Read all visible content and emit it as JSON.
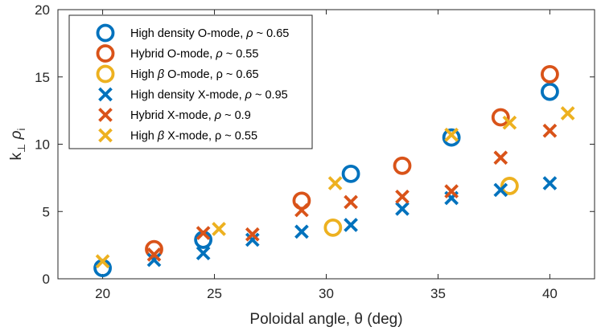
{
  "chart_data": {
    "type": "scatter",
    "title": "",
    "xlabel": "Poloidal angle, θ (deg)",
    "ylabel": "k⊥ρi",
    "ylabel_main": "k",
    "ylabel_sub1": "⊥",
    "ylabel_mid": " ρ",
    "ylabel_sub2": "i",
    "xlim": [
      18,
      42
    ],
    "ylim": [
      0,
      20
    ],
    "xticks": [
      20,
      25,
      30,
      35,
      40
    ],
    "yticks": [
      0,
      5,
      10,
      15,
      20
    ],
    "grid": false,
    "legend_position": "top-left",
    "series": [
      {
        "name": "High density O-mode, ρ ~ 0.65",
        "label_pre": "High density O-mode, ",
        "label_sym": "ρ",
        "label_post": " ~ 0.65",
        "marker": "circle",
        "color": "#0072BD",
        "points": [
          [
            20,
            0.8
          ],
          [
            24.5,
            2.9
          ],
          [
            31.1,
            7.8
          ],
          [
            35.6,
            10.5
          ],
          [
            40,
            13.9
          ]
        ]
      },
      {
        "name": "Hybrid O-mode, ρ ~ 0.55",
        "label_pre": "Hybrid O-mode, ",
        "label_sym": "ρ",
        "label_post": " ~ 0.55",
        "marker": "circle",
        "color": "#D95319",
        "points": [
          [
            22.3,
            2.2
          ],
          [
            28.9,
            5.8
          ],
          [
            33.4,
            8.4
          ],
          [
            37.8,
            12.0
          ],
          [
            40,
            15.2
          ]
        ]
      },
      {
        "name": "High β O-mode, ρ ~ 0.65",
        "label_pre": "High ",
        "label_sym": "β",
        "label_post": " O-mode, ρ ~ 0.65",
        "marker": "circle",
        "color": "#EDB120",
        "points": [
          [
            30.3,
            3.8
          ],
          [
            38.2,
            6.9
          ]
        ]
      },
      {
        "name": "High density X-mode, ρ ~ 0.95",
        "label_pre": "High density X-mode, ",
        "label_sym": "ρ",
        "label_post": " ~ 0.95",
        "marker": "x",
        "color": "#0072BD",
        "points": [
          [
            22.3,
            1.4
          ],
          [
            24.5,
            1.9
          ],
          [
            26.7,
            2.9
          ],
          [
            28.9,
            3.5
          ],
          [
            31.1,
            4.0
          ],
          [
            33.4,
            5.2
          ],
          [
            35.6,
            6.0
          ],
          [
            37.8,
            6.6
          ],
          [
            40,
            7.1
          ]
        ]
      },
      {
        "name": "Hybrid X-mode, ρ ~ 0.9",
        "label_pre": "Hybrid X-mode, ",
        "label_sym": "ρ",
        "label_post": " ~ 0.9",
        "marker": "x",
        "color": "#D95319",
        "points": [
          [
            22.3,
            1.8
          ],
          [
            24.5,
            3.4
          ],
          [
            26.7,
            3.3
          ],
          [
            28.9,
            5.1
          ],
          [
            31.1,
            5.7
          ],
          [
            33.4,
            6.1
          ],
          [
            35.6,
            6.5
          ],
          [
            37.8,
            9.0
          ],
          [
            40,
            11.0
          ]
        ]
      },
      {
        "name": "High β X-mode, ρ ~ 0.55",
        "label_pre": "High ",
        "label_sym": "β",
        "label_post": " X-mode, ρ ~ 0.55",
        "marker": "x",
        "color": "#EDB120",
        "points": [
          [
            20,
            1.3
          ],
          [
            25.2,
            3.7
          ],
          [
            30.4,
            7.1
          ],
          [
            35.6,
            10.7
          ],
          [
            38.2,
            11.6
          ],
          [
            40.8,
            12.3
          ]
        ]
      }
    ]
  }
}
